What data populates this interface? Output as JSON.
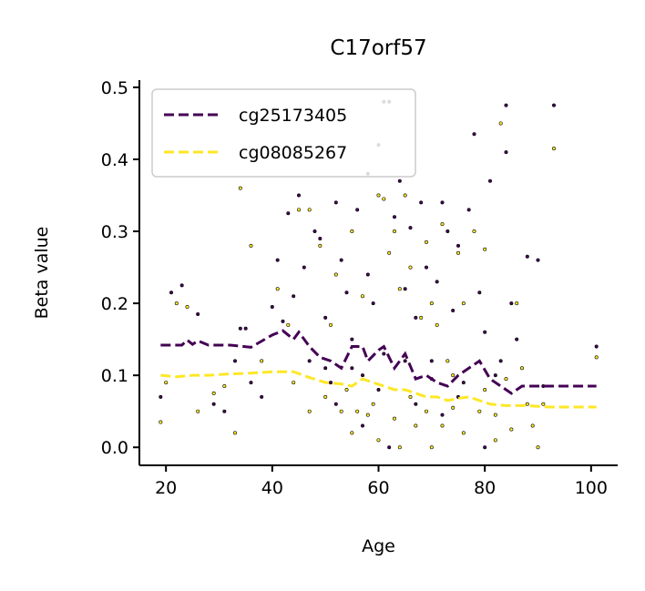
{
  "chart_data": {
    "type": "scatter",
    "title": "C17orf57",
    "xlabel": "Age",
    "ylabel": "Beta value",
    "xlim": [
      15,
      105
    ],
    "ylim": [
      -0.025,
      0.51
    ],
    "xticks": [
      20,
      40,
      60,
      80,
      100
    ],
    "yticks": [
      0.0,
      0.1,
      0.2,
      0.3,
      0.4,
      0.5
    ],
    "ytick_labels": [
      "0.0",
      "0.1",
      "0.2",
      "0.3",
      "0.4",
      "0.5"
    ],
    "grid": false,
    "legend_position": "top-left",
    "series": [
      {
        "name": "cg25173405",
        "color": "#440154",
        "points": [
          [
            19,
            0.07
          ],
          [
            21,
            0.215
          ],
          [
            23,
            0.225
          ],
          [
            26,
            0.185
          ],
          [
            29,
            0.06
          ],
          [
            31,
            0.05
          ],
          [
            33,
            0.12
          ],
          [
            34,
            0.165
          ],
          [
            35,
            0.165
          ],
          [
            36,
            0.09
          ],
          [
            38,
            0.07
          ],
          [
            40,
            0.195
          ],
          [
            41,
            0.26
          ],
          [
            42,
            0.175
          ],
          [
            43,
            0.325
          ],
          [
            44,
            0.21
          ],
          [
            45,
            0.35
          ],
          [
            46,
            0.25
          ],
          [
            47,
            0.12
          ],
          [
            48,
            0.3
          ],
          [
            49,
            0.29
          ],
          [
            50,
            0.18
          ],
          [
            51,
            0.09
          ],
          [
            52,
            0.34
          ],
          [
            53,
            0.26
          ],
          [
            54,
            0.215
          ],
          [
            55,
            0.15
          ],
          [
            56,
            0.33
          ],
          [
            57,
            0.1
          ],
          [
            58,
            0.38
          ],
          [
            58,
            0.24
          ],
          [
            59,
            0.2
          ],
          [
            60,
            0.42
          ],
          [
            61,
            0.48
          ],
          [
            61,
            0.13
          ],
          [
            62,
            0.48
          ],
          [
            63,
            0.32
          ],
          [
            64,
            0.37
          ],
          [
            65,
            0.22
          ],
          [
            66,
            0.305
          ],
          [
            67,
            0.18
          ],
          [
            68,
            0.34
          ],
          [
            69,
            0.25
          ],
          [
            70,
            0.12
          ],
          [
            71,
            0.23
          ],
          [
            72,
            0.34
          ],
          [
            73,
            0.3
          ],
          [
            74,
            0.19
          ],
          [
            75,
            0.28
          ],
          [
            76,
            0.09
          ],
          [
            77,
            0.33
          ],
          [
            78,
            0.435
          ],
          [
            79,
            0.215
          ],
          [
            80,
            0.16
          ],
          [
            81,
            0.37
          ],
          [
            82,
            0.1
          ],
          [
            83,
            0.12
          ],
          [
            84,
            0.475
          ],
          [
            84,
            0.41
          ],
          [
            85,
            0.2
          ],
          [
            86,
            0.15
          ],
          [
            88,
            0.265
          ],
          [
            90,
            0.26
          ],
          [
            91,
            0.085
          ],
          [
            93,
            0.475
          ],
          [
            101,
            0.14
          ],
          [
            50,
            0.11
          ],
          [
            55,
            0.11
          ],
          [
            60,
            0.08
          ],
          [
            65,
            0.12
          ],
          [
            70,
            0.095
          ],
          [
            75,
            0.07
          ],
          [
            62,
            0.0
          ],
          [
            80,
            0.0
          ],
          [
            52,
            0.06
          ],
          [
            57,
            0.03
          ],
          [
            67,
            0.06
          ],
          [
            72,
            0.045
          ]
        ],
        "trend": [
          [
            19,
            0.142
          ],
          [
            23,
            0.142
          ],
          [
            24,
            0.149
          ],
          [
            25,
            0.143
          ],
          [
            26,
            0.148
          ],
          [
            28,
            0.142
          ],
          [
            32,
            0.142
          ],
          [
            36,
            0.139
          ],
          [
            40,
            0.156
          ],
          [
            42,
            0.162
          ],
          [
            44,
            0.15
          ],
          [
            45,
            0.16
          ],
          [
            47,
            0.14
          ],
          [
            49,
            0.125
          ],
          [
            51,
            0.12
          ],
          [
            53,
            0.11
          ],
          [
            55,
            0.14
          ],
          [
            57,
            0.14
          ],
          [
            58,
            0.12
          ],
          [
            60,
            0.135
          ],
          [
            61,
            0.14
          ],
          [
            63,
            0.11
          ],
          [
            65,
            0.13
          ],
          [
            67,
            0.095
          ],
          [
            69,
            0.1
          ],
          [
            71,
            0.09
          ],
          [
            73,
            0.085
          ],
          [
            75,
            0.1
          ],
          [
            77,
            0.11
          ],
          [
            79,
            0.12
          ],
          [
            81,
            0.095
          ],
          [
            83,
            0.085
          ],
          [
            85,
            0.075
          ],
          [
            87,
            0.085
          ],
          [
            90,
            0.085
          ],
          [
            101,
            0.085
          ]
        ]
      },
      {
        "name": "cg08085267",
        "color": "#fde725",
        "points": [
          [
            19,
            0.035
          ],
          [
            20,
            0.09
          ],
          [
            22,
            0.2
          ],
          [
            24,
            0.195
          ],
          [
            26,
            0.05
          ],
          [
            29,
            0.075
          ],
          [
            31,
            0.085
          ],
          [
            33,
            0.02
          ],
          [
            34,
            0.36
          ],
          [
            36,
            0.28
          ],
          [
            38,
            0.12
          ],
          [
            41,
            0.22
          ],
          [
            43,
            0.17
          ],
          [
            45,
            0.33
          ],
          [
            47,
            0.33
          ],
          [
            49,
            0.28
          ],
          [
            51,
            0.17
          ],
          [
            52,
            0.24
          ],
          [
            53,
            0.05
          ],
          [
            55,
            0.3
          ],
          [
            57,
            0.21
          ],
          [
            58,
            0.045
          ],
          [
            60,
            0.35
          ],
          [
            61,
            0.345
          ],
          [
            62,
            0.27
          ],
          [
            63,
            0.3
          ],
          [
            64,
            0.22
          ],
          [
            65,
            0.35
          ],
          [
            66,
            0.25
          ],
          [
            67,
            0.03
          ],
          [
            68,
            0.18
          ],
          [
            69,
            0.285
          ],
          [
            70,
            0.2
          ],
          [
            71,
            0.17
          ],
          [
            72,
            0.31
          ],
          [
            73,
            0.12
          ],
          [
            74,
            0.1
          ],
          [
            75,
            0.27
          ],
          [
            76,
            0.2
          ],
          [
            78,
            0.3
          ],
          [
            80,
            0.275
          ],
          [
            82,
            0.045
          ],
          [
            83,
            0.45
          ],
          [
            84,
            0.095
          ],
          [
            86,
            0.2
          ],
          [
            87,
            0.11
          ],
          [
            89,
            0.03
          ],
          [
            91,
            0.06
          ],
          [
            93,
            0.415
          ],
          [
            101,
            0.125
          ],
          [
            50,
            0.07
          ],
          [
            54,
            0.08
          ],
          [
            56,
            0.05
          ],
          [
            59,
            0.06
          ],
          [
            63,
            0.04
          ],
          [
            66,
            0.07
          ],
          [
            69,
            0.05
          ],
          [
            72,
            0.03
          ],
          [
            76,
            0.02
          ],
          [
            79,
            0.05
          ],
          [
            82,
            0.01
          ],
          [
            85,
            0.025
          ],
          [
            88,
            0.06
          ],
          [
            47,
            0.05
          ],
          [
            44,
            0.09
          ],
          [
            90,
            0.0
          ],
          [
            64,
            0.0
          ],
          [
            55,
            0.02
          ],
          [
            60,
            0.01
          ],
          [
            70,
            0.0
          ],
          [
            74,
            0.055
          ],
          [
            80,
            0.08
          ]
        ],
        "trend": [
          [
            19,
            0.1
          ],
          [
            22,
            0.098
          ],
          [
            25,
            0.1
          ],
          [
            28,
            0.1
          ],
          [
            32,
            0.102
          ],
          [
            36,
            0.103
          ],
          [
            40,
            0.105
          ],
          [
            44,
            0.105
          ],
          [
            47,
            0.097
          ],
          [
            50,
            0.09
          ],
          [
            53,
            0.088
          ],
          [
            55,
            0.085
          ],
          [
            57,
            0.095
          ],
          [
            59,
            0.09
          ],
          [
            61,
            0.085
          ],
          [
            63,
            0.08
          ],
          [
            65,
            0.08
          ],
          [
            67,
            0.075
          ],
          [
            69,
            0.07
          ],
          [
            71,
            0.07
          ],
          [
            73,
            0.065
          ],
          [
            75,
            0.068
          ],
          [
            77,
            0.07
          ],
          [
            79,
            0.065
          ],
          [
            81,
            0.06
          ],
          [
            84,
            0.058
          ],
          [
            88,
            0.058
          ],
          [
            92,
            0.056
          ],
          [
            101,
            0.056
          ]
        ]
      }
    ]
  }
}
